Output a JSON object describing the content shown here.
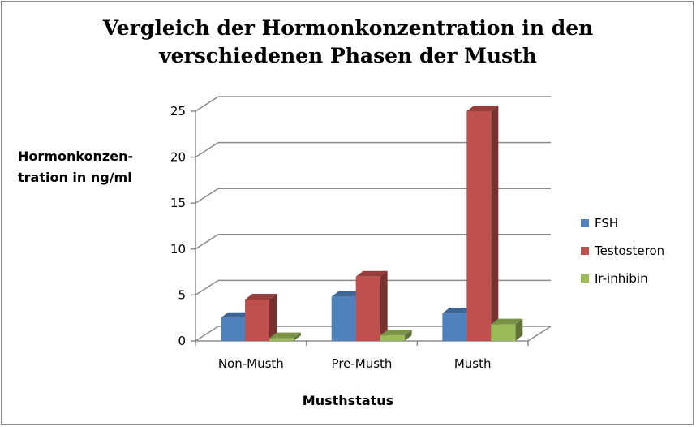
{
  "chart_data": {
    "type": "bar",
    "title": "Vergleich der Hormonkonzentration in den verschiedenen Phasen der Musth",
    "title_lines": [
      "Vergleich der Hormonkonzentration in den",
      "verschiedenen Phasen der Musth"
    ],
    "ylabel_lines": [
      "Hormonkonzen-",
      "tration in ng/ml"
    ],
    "xlabel": "Musthstatus",
    "categories": [
      "Non-Musth",
      "Pre-Musth",
      "Musth"
    ],
    "series": [
      {
        "name": "FSH",
        "values": [
          2.5,
          4.8,
          3.0
        ],
        "color": "#4f81bd"
      },
      {
        "name": "Testosteron",
        "values": [
          4.5,
          7.0,
          25.0
        ],
        "color": "#c0504d"
      },
      {
        "name": "Ir-inhibin",
        "values": [
          0.3,
          0.6,
          1.8
        ],
        "color": "#9bbb59"
      }
    ],
    "ylim": [
      0,
      25
    ],
    "yticks": [
      0,
      5,
      10,
      15,
      20,
      25
    ],
    "grid": true,
    "legend_position": "right"
  }
}
